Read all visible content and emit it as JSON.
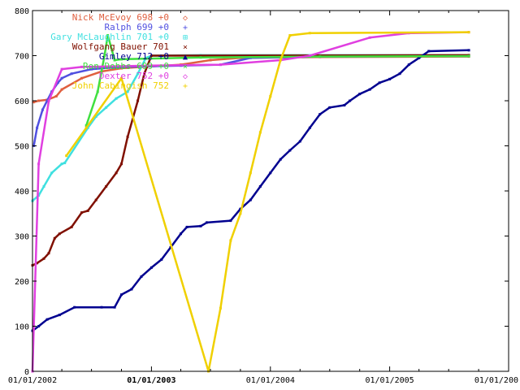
{
  "chart_data": {
    "type": "line",
    "title": "",
    "xlabel": "",
    "ylabel": "",
    "ylim": [
      0,
      800
    ],
    "xlim": [
      "2002-01-01",
      "2006-01-01"
    ],
    "grid": false,
    "legend_placement": "top-left",
    "y_ticks": [
      "0",
      "100",
      "200",
      "300",
      "400",
      "500",
      "600",
      "700",
      "800"
    ],
    "x_ticks": [
      {
        "label": "01/01/2002",
        "date": "2002-01-01"
      },
      {
        "label": "01/01/2003",
        "date": "2003-01-01",
        "bold": true
      },
      {
        "label": "01/01/2004",
        "date": "2004-01-01"
      },
      {
        "label": "01/01/2005",
        "date": "2005-01-01"
      },
      {
        "label": "01/01/200",
        "date": "2006-01-01"
      }
    ],
    "series": [
      {
        "name": "Nick McEvoy 698 +0",
        "marker": "◇",
        "color": "#e06040",
        "points": [
          [
            "2002-01-05",
            597
          ],
          [
            "2002-01-20",
            600
          ],
          [
            "2002-02-15",
            602
          ],
          [
            "2002-03-15",
            610
          ],
          [
            "2002-04-01",
            625
          ],
          [
            "2002-06-01",
            650
          ],
          [
            "2002-08-01",
            665
          ],
          [
            "2002-10-01",
            672
          ],
          [
            "2002-12-01",
            675
          ],
          [
            "2003-04-01",
            680
          ],
          [
            "2003-07-01",
            690
          ],
          [
            "2003-10-01",
            695
          ],
          [
            "2004-06-01",
            697
          ],
          [
            "2005-09-01",
            698
          ]
        ]
      },
      {
        "name": "Ralph 699 +0",
        "marker": "+",
        "color": "#5050e0",
        "points": [
          [
            "2002-01-05",
            500
          ],
          [
            "2002-01-15",
            540
          ],
          [
            "2002-02-01",
            580
          ],
          [
            "2002-02-15",
            600
          ],
          [
            "2002-03-01",
            620
          ],
          [
            "2002-03-20",
            640
          ],
          [
            "2002-04-01",
            650
          ],
          [
            "2002-05-01",
            660
          ],
          [
            "2002-07-01",
            670
          ],
          [
            "2002-10-01",
            675
          ],
          [
            "2003-04-01",
            678
          ],
          [
            "2003-08-01",
            680
          ],
          [
            "2003-11-01",
            695
          ],
          [
            "2004-06-01",
            698
          ],
          [
            "2005-09-01",
            699
          ]
        ]
      },
      {
        "name": "Gary McLaughlin 701 +0",
        "marker": "⊞",
        "color": "#40e0e0",
        "points": [
          [
            "2002-01-01",
            378
          ],
          [
            "2002-01-20",
            390
          ],
          [
            "2002-02-05",
            410
          ],
          [
            "2002-03-01",
            440
          ],
          [
            "2002-04-01",
            460
          ],
          [
            "2002-04-10",
            462
          ],
          [
            "2002-06-20",
            540
          ],
          [
            "2002-07-15",
            565
          ],
          [
            "2002-08-15",
            585
          ],
          [
            "2002-09-15",
            605
          ],
          [
            "2002-10-20",
            620
          ],
          [
            "2002-11-20",
            660
          ],
          [
            "2002-12-15",
            695
          ],
          [
            "2003-01-01",
            700
          ],
          [
            "2003-06-01",
            701
          ],
          [
            "2005-09-01",
            701
          ]
        ]
      },
      {
        "name": "Wolfgang Bauer 701",
        "marker": "×",
        "color": "#801000",
        "points": [
          [
            "2002-01-01",
            235
          ],
          [
            "2002-01-15",
            240
          ],
          [
            "2002-02-05",
            250
          ],
          [
            "2002-02-20",
            262
          ],
          [
            "2002-03-10",
            295
          ],
          [
            "2002-03-25",
            305
          ],
          [
            "2002-05-01",
            320
          ],
          [
            "2002-06-01",
            352
          ],
          [
            "2002-06-20",
            356
          ],
          [
            "2002-07-15",
            380
          ],
          [
            "2002-08-15",
            410
          ],
          [
            "2002-09-15",
            440
          ],
          [
            "2002-10-01",
            460
          ],
          [
            "2002-10-20",
            520
          ],
          [
            "2002-11-20",
            600
          ],
          [
            "2002-12-10",
            660
          ],
          [
            "2003-01-01",
            700
          ],
          [
            "2005-09-01",
            701
          ]
        ]
      },
      {
        "name": "Gimley 712 +0",
        "marker": "▲",
        "color": "#000090",
        "points": [
          [
            "2002-01-01",
            90
          ],
          [
            "2002-01-20",
            100
          ],
          [
            "2002-02-15",
            115
          ],
          [
            "2002-03-25",
            125
          ],
          [
            "2002-05-10",
            142
          ],
          [
            "2002-08-01",
            142
          ],
          [
            "2002-09-10",
            142
          ],
          [
            "2002-10-01",
            170
          ],
          [
            "2002-11-01",
            182
          ],
          [
            "2002-12-01",
            210
          ],
          [
            "2003-01-01",
            230
          ],
          [
            "2003-02-01",
            248
          ],
          [
            "2003-03-01",
            275
          ],
          [
            "2003-04-01",
            305
          ],
          [
            "2003-04-20",
            320
          ],
          [
            "2003-06-01",
            322
          ],
          [
            "2003-06-20",
            330
          ],
          [
            "2003-09-01",
            334
          ],
          [
            "2003-10-01",
            360
          ],
          [
            "2003-11-01",
            380
          ],
          [
            "2003-12-01",
            410
          ],
          [
            "2004-01-01",
            440
          ],
          [
            "2004-02-01",
            470
          ],
          [
            "2004-03-01",
            490
          ],
          [
            "2004-04-01",
            510
          ],
          [
            "2004-05-01",
            540
          ],
          [
            "2004-06-01",
            570
          ],
          [
            "2004-07-01",
            585
          ],
          [
            "2004-08-15",
            590
          ],
          [
            "2004-09-01",
            600
          ],
          [
            "2004-10-01",
            615
          ],
          [
            "2004-11-01",
            625
          ],
          [
            "2004-12-01",
            640
          ],
          [
            "2005-01-01",
            648
          ],
          [
            "2005-02-01",
            660
          ],
          [
            "2005-03-01",
            680
          ],
          [
            "2005-04-01",
            695
          ],
          [
            "2005-05-01",
            710
          ],
          [
            "2005-09-01",
            712
          ]
        ]
      },
      {
        "name": "Ron Dobbs 699 +0",
        "marker": "×",
        "color": "#40e040",
        "points": [
          [
            "2002-06-15",
            545
          ],
          [
            "2002-07-20",
            620
          ],
          [
            "2002-08-10",
            700
          ],
          [
            "2002-08-20",
            745
          ],
          [
            "2002-09-10",
            690
          ],
          [
            "2002-10-01",
            692
          ],
          [
            "2003-06-01",
            696
          ],
          [
            "2004-06-01",
            698
          ],
          [
            "2005-09-01",
            699
          ]
        ]
      },
      {
        "name": "Dexter 752 +0",
        "marker": "◇",
        "color": "#e040e0",
        "points": [
          [
            "2002-01-01",
            0
          ],
          [
            "2002-01-20",
            460
          ],
          [
            "2002-02-20",
            600
          ],
          [
            "2002-04-01",
            670
          ],
          [
            "2002-06-01",
            675
          ],
          [
            "2003-01-01",
            678
          ],
          [
            "2003-08-01",
            680
          ],
          [
            "2004-02-01",
            690
          ],
          [
            "2004-05-01",
            700
          ],
          [
            "2004-11-01",
            740
          ],
          [
            "2005-03-01",
            750
          ],
          [
            "2005-09-01",
            752
          ]
        ]
      },
      {
        "name": "John Cabingish 752",
        "marker": "+",
        "color": "#f0d000",
        "points": [
          [
            "2002-04-15",
            478
          ],
          [
            "2002-06-15",
            540
          ],
          [
            "2002-10-01",
            650
          ],
          [
            "2003-06-25",
            0
          ],
          [
            "2003-08-01",
            140
          ],
          [
            "2003-09-01",
            290
          ],
          [
            "2003-10-01",
            350
          ],
          [
            "2003-11-01",
            440
          ],
          [
            "2003-12-01",
            530
          ],
          [
            "2004-01-01",
            610
          ],
          [
            "2004-02-01",
            690
          ],
          [
            "2004-03-01",
            745
          ],
          [
            "2004-05-01",
            750
          ],
          [
            "2005-09-01",
            752
          ]
        ]
      }
    ]
  }
}
